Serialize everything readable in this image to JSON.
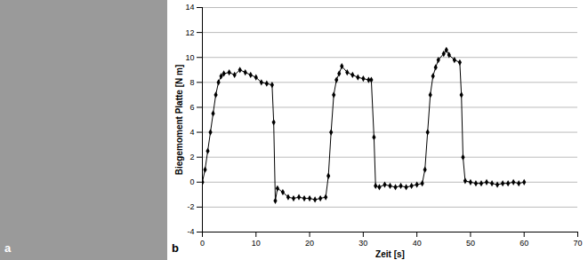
{
  "chart_data": {
    "type": "line",
    "xlabel": "Zeit [s]",
    "ylabel": "Biegemoment Platte [N m]",
    "annotations": [
      "a",
      "b"
    ],
    "x": [
      0,
      0.5,
      1,
      1.5,
      2,
      2.5,
      3,
      3.5,
      4,
      5,
      6,
      7,
      8,
      9,
      10,
      11,
      12,
      13,
      13.3,
      13.6,
      14,
      15,
      16,
      17,
      18,
      19,
      20,
      21,
      22,
      23,
      23.5,
      24,
      24.5,
      25,
      25.5,
      26,
      27,
      28,
      29,
      30,
      31,
      31.5,
      32,
      32.3,
      33,
      34,
      35,
      36,
      37,
      38,
      39,
      40,
      41,
      41.5,
      42,
      42.5,
      43,
      43.5,
      44,
      45,
      45.5,
      46,
      47,
      48,
      48.3,
      48.6,
      49,
      50,
      51,
      52,
      53,
      54,
      55,
      56,
      57,
      58,
      59,
      60
    ],
    "values": [
      0,
      1,
      2.5,
      4,
      5.5,
      7,
      8,
      8.5,
      8.7,
      8.8,
      8.6,
      9,
      8.8,
      8.6,
      8.4,
      8,
      7.9,
      7.8,
      4.8,
      -1.5,
      -0.5,
      -0.8,
      -1.2,
      -1.3,
      -1.2,
      -1.3,
      -1.3,
      -1.4,
      -1.3,
      -1.2,
      0.5,
      4,
      7,
      8.2,
      8.7,
      9.3,
      8.8,
      8.6,
      8.4,
      8.3,
      8.2,
      8.2,
      3.6,
      -0.3,
      -0.4,
      -0.2,
      -0.3,
      -0.4,
      -0.3,
      -0.4,
      -0.3,
      -0.2,
      -0.1,
      1,
      4,
      7,
      8.5,
      9.2,
      9.8,
      10.3,
      10.6,
      10.2,
      9.8,
      9.6,
      7,
      2,
      0.1,
      0,
      -0.1,
      -0.1,
      0,
      -0.1,
      -0.2,
      -0.1,
      -0.1,
      0,
      -0.1,
      0
    ],
    "color": "#000000",
    "marker": "diamond",
    "line_style": "solid",
    "xlim": [
      0,
      70
    ],
    "xticks": [
      0,
      10,
      20,
      30,
      40,
      50,
      60,
      70
    ],
    "ylim": [
      -4,
      14
    ],
    "yticks": [
      -4,
      -2,
      0,
      2,
      4,
      6,
      8,
      10,
      12,
      14
    ],
    "grid": true
  }
}
